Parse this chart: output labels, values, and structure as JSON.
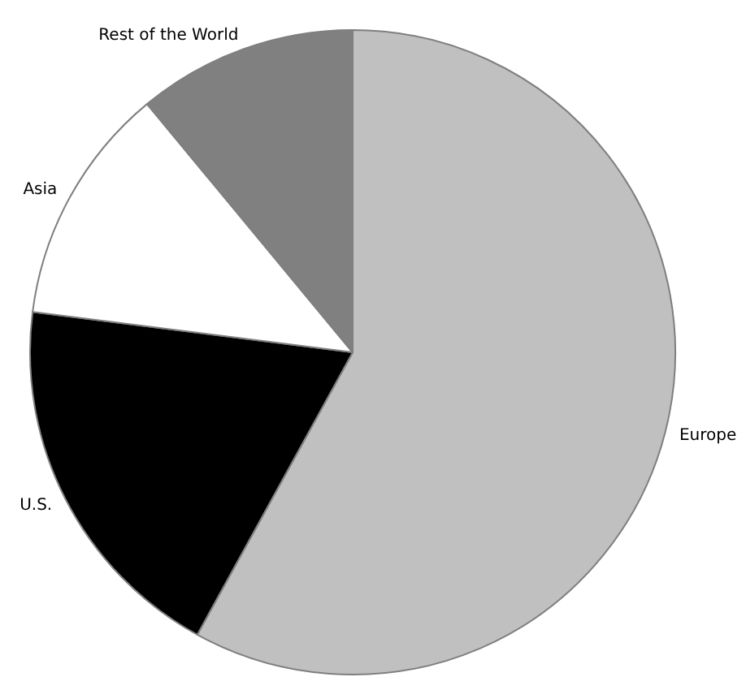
{
  "chart_data": {
    "type": "pie",
    "categories": [
      "Europe",
      "U.S.",
      "Asia",
      "Rest of the World"
    ],
    "values": [
      58,
      19,
      12,
      11
    ],
    "colors": [
      "#c0c0c0",
      "#000000",
      "#ffffff",
      "#808080"
    ]
  }
}
